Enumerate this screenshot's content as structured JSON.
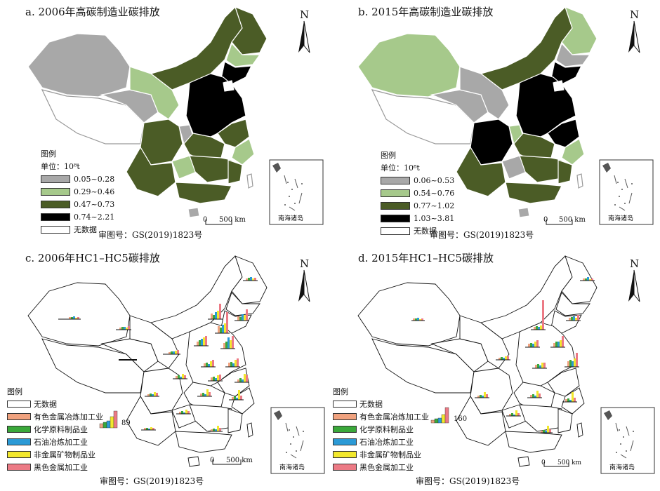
{
  "panels": [
    {
      "title": "a. 2006年高碳制造业碳排放",
      "legend_title": "图例",
      "unit": "单位：10⁸t",
      "classes": [
        {
          "label": "0.05~0.28",
          "color": "#a8a8a8"
        },
        {
          "label": "0.29~0.46",
          "color": "#a6c98b"
        },
        {
          "label": "0.47~0.73",
          "color": "#4b5c26"
        },
        {
          "label": "0.74~2.21",
          "color": "#000000"
        },
        {
          "label": "无数据",
          "color": "#ffffff"
        }
      ],
      "scale": {
        "zero": "0",
        "dist": "500 km"
      },
      "north": "N",
      "inset": "南海诸岛",
      "approval": "审图号：GS(2019)1823号"
    },
    {
      "title": "b. 2015年高碳制造业碳排放",
      "legend_title": "图例",
      "unit": "单位：10⁸t",
      "classes": [
        {
          "label": "0.06~0.53",
          "color": "#a8a8a8"
        },
        {
          "label": "0.54~0.76",
          "color": "#a6c98b"
        },
        {
          "label": "0.77~1.02",
          "color": "#4b5c26"
        },
        {
          "label": "1.03~3.81",
          "color": "#000000"
        },
        {
          "label": "无数据",
          "color": "#ffffff"
        }
      ],
      "scale": {
        "zero": "0",
        "dist": "500 km"
      },
      "north": "N",
      "inset": "南海诸岛",
      "approval": "审图号：GS(2019)1823号"
    },
    {
      "title": "c. 2006年HC1–HC5碳排放",
      "legend_title": "图例",
      "categories": [
        {
          "label": "无数据",
          "color": "#ffffff"
        },
        {
          "label": "有色金属冶炼加工业",
          "color": "#f0a27f"
        },
        {
          "label": "化学原料制品业",
          "color": "#3aa83a"
        },
        {
          "label": "石油冶炼加工业",
          "color": "#2b9ad6"
        },
        {
          "label": "非金属矿物制品业",
          "color": "#f2e82c"
        },
        {
          "label": "黑色金属加工业",
          "color": "#ec7a85"
        }
      ],
      "ref_value": "89",
      "scale": {
        "zero": "0",
        "dist": "500 km"
      },
      "north": "N",
      "inset": "南海诸岛",
      "approval": "审图号：GS(2019)1823号"
    },
    {
      "title": "d. 2015年HC1–HC5碳排放",
      "legend_title": "图例",
      "categories": [
        {
          "label": "无数据",
          "color": "#ffffff"
        },
        {
          "label": "有色金属冶炼加工业",
          "color": "#f0a27f"
        },
        {
          "label": "化学原料制品业",
          "color": "#3aa83a"
        },
        {
          "label": "石油冶炼加工业",
          "color": "#2b9ad6"
        },
        {
          "label": "非金属矿物制品业",
          "color": "#f2e82c"
        },
        {
          "label": "黑色金属加工业",
          "color": "#ec7a85"
        }
      ],
      "ref_value": "160",
      "scale": {
        "zero": "0",
        "dist": "500 km"
      },
      "north": "N",
      "inset": "南海诸岛",
      "approval": "审图号：GS(2019)1823号"
    }
  ]
}
